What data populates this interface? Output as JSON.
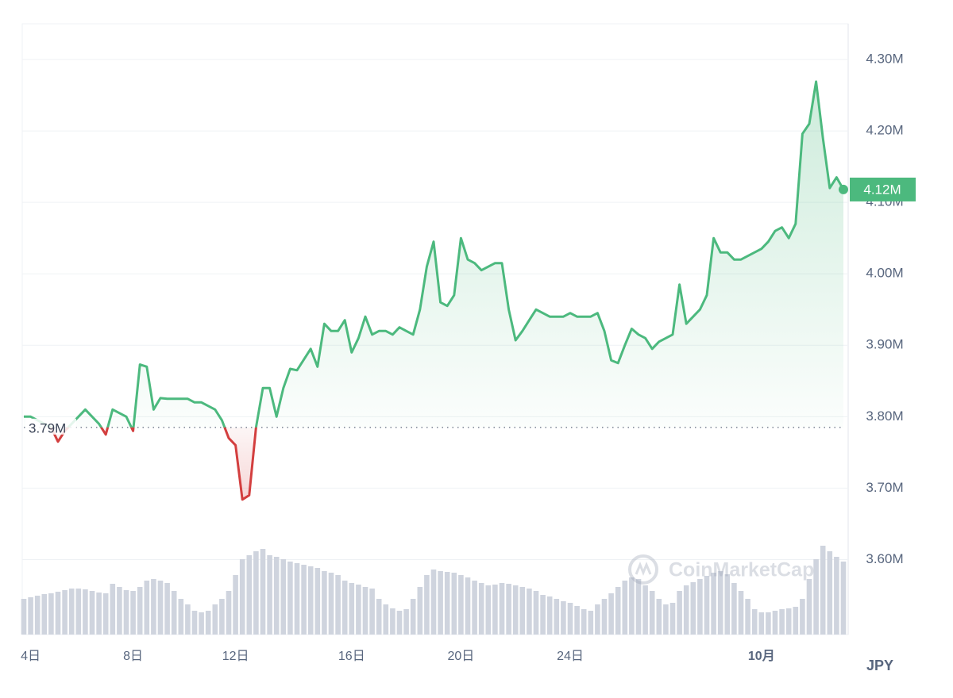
{
  "chart_data": {
    "type": "line",
    "currency": "JPY",
    "watermark": "CoinMarketCap",
    "up_color": "#4cb97e",
    "down_color": "#d33f3f",
    "volume_color": "#cfd4de",
    "ylim": [
      3.495,
      4.35
    ],
    "yticks": [
      {
        "value": 3.6,
        "label": "3.60M"
      },
      {
        "value": 3.7,
        "label": "3.70M"
      },
      {
        "value": 3.8,
        "label": "3.80M"
      },
      {
        "value": 3.9,
        "label": "3.90M"
      },
      {
        "value": 4.0,
        "label": "4.00M"
      },
      {
        "value": 4.1,
        "label": "4.10M"
      },
      {
        "value": 4.2,
        "label": "4.20M"
      },
      {
        "value": 4.3,
        "label": "4.30M"
      }
    ],
    "grid": true,
    "baseline": {
      "value": 3.785,
      "label": "3.79M"
    },
    "current_price": {
      "value": 4.118,
      "label": "4.12M"
    },
    "categories": [
      null,
      "4日",
      null,
      null,
      null,
      null,
      null,
      null,
      null,
      null,
      null,
      null,
      null,
      null,
      null,
      null,
      "8日",
      null,
      null,
      null,
      null,
      null,
      null,
      null,
      null,
      null,
      null,
      null,
      null,
      null,
      null,
      "12日",
      null,
      null,
      null,
      null,
      null,
      null,
      null,
      null,
      null,
      null,
      null,
      null,
      null,
      null,
      null,
      null,
      "16日",
      null,
      null,
      null,
      null,
      null,
      null,
      null,
      null,
      null,
      null,
      null,
      null,
      null,
      null,
      null,
      "20日",
      null,
      null,
      null,
      null,
      null,
      null,
      null,
      null,
      null,
      null,
      null,
      null,
      null,
      null,
      null,
      "24日",
      null,
      null,
      null,
      null,
      null,
      null,
      null,
      null,
      null,
      null,
      null,
      null,
      null,
      null,
      null,
      null,
      null,
      null,
      null,
      null,
      null,
      null,
      null,
      null,
      null,
      null,
      null,
      "10月",
      null,
      null,
      null,
      null,
      null,
      null,
      null,
      null,
      null,
      null,
      null,
      null
    ],
    "values": [
      3.8,
      3.8,
      3.795,
      3.79,
      3.785,
      3.765,
      3.78,
      3.79,
      3.8,
      3.81,
      3.8,
      3.79,
      3.775,
      3.81,
      3.805,
      3.8,
      3.78,
      3.873,
      3.87,
      3.81,
      3.826,
      3.825,
      3.825,
      3.825,
      3.825,
      3.82,
      3.82,
      3.815,
      3.81,
      3.795,
      3.77,
      3.76,
      3.684,
      3.69,
      3.785,
      3.84,
      3.84,
      3.8,
      3.84,
      3.867,
      3.865,
      3.88,
      3.895,
      3.87,
      3.93,
      3.92,
      3.92,
      3.935,
      3.89,
      3.91,
      3.94,
      3.915,
      3.92,
      3.92,
      3.915,
      3.925,
      3.92,
      3.915,
      3.95,
      4.01,
      4.045,
      3.96,
      3.955,
      3.97,
      4.05,
      4.02,
      4.015,
      4.005,
      4.01,
      4.015,
      4.015,
      3.95,
      3.907,
      3.92,
      3.935,
      3.95,
      3.945,
      3.94,
      3.94,
      3.94,
      3.945,
      3.94,
      3.94,
      3.94,
      3.945,
      3.92,
      3.879,
      3.875,
      3.9,
      3.923,
      3.915,
      3.91,
      3.895,
      3.905,
      3.91,
      3.915,
      3.985,
      3.93,
      3.94,
      3.95,
      3.97,
      4.05,
      4.03,
      4.03,
      4.02,
      4.02,
      4.025,
      4.03,
      4.035,
      4.045,
      4.06,
      4.065,
      4.05,
      4.07,
      4.196,
      4.21,
      4.269,
      4.19,
      4.12,
      4.135,
      4.118
    ],
    "volume": [
      45,
      47,
      49,
      51,
      52,
      54,
      56,
      58,
      58,
      57,
      55,
      53,
      52,
      64,
      60,
      56,
      55,
      60,
      68,
      70,
      68,
      65,
      55,
      45,
      38,
      30,
      28,
      30,
      38,
      45,
      55,
      75,
      95,
      100,
      105,
      108,
      100,
      98,
      95,
      92,
      90,
      88,
      86,
      84,
      80,
      78,
      75,
      68,
      65,
      63,
      60,
      58,
      45,
      38,
      33,
      30,
      32,
      45,
      60,
      75,
      82,
      80,
      79,
      78,
      75,
      72,
      68,
      65,
      62,
      63,
      65,
      64,
      62,
      60,
      58,
      55,
      50,
      48,
      45,
      42,
      40,
      36,
      32,
      30,
      38,
      45,
      52,
      60,
      68,
      72,
      70,
      62,
      55,
      45,
      38,
      40,
      55,
      62,
      66,
      70,
      74,
      78,
      80,
      76,
      65,
      55,
      45,
      32,
      28,
      28,
      30,
      32,
      33,
      35,
      45,
      70,
      95,
      112,
      105,
      98,
      92
    ]
  }
}
